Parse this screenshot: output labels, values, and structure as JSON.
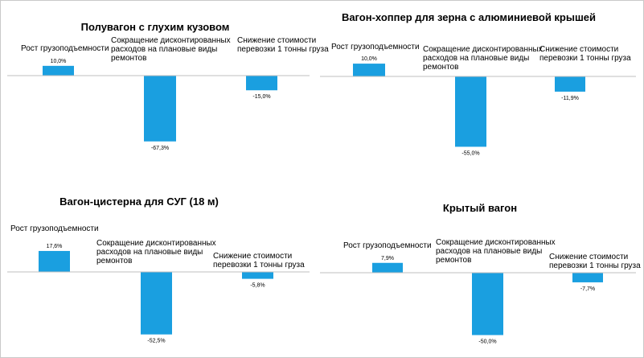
{
  "colors": {
    "bar": "#1a9fe0",
    "axis": "#bfbfbf"
  },
  "chart_data": [
    {
      "type": "bar",
      "title": "Полувагон с глухим кузовом",
      "categories": [
        [
          "Рост грузоподъемности"
        ],
        [
          "Сокращение дисконтированных",
          "расходов на плановые виды",
          "ремонтов"
        ],
        [
          "Снижение стоимости",
          "перевозки 1 тонны груза"
        ]
      ],
      "values": [
        10.0,
        -67.3,
        -15.0
      ],
      "value_labels": [
        "10,0%",
        "-67,3%",
        "-15,0%"
      ]
    },
    {
      "type": "bar",
      "title": "Вагон-хоппер  для зерна с алюминиевой крышей",
      "categories": [
        [
          "Рост грузоподъемности"
        ],
        [
          "Сокращение дисконтированных",
          "расходов на плановые виды",
          "ремонтов"
        ],
        [
          "Снижение стоимости",
          "перевозки 1 тонны груза"
        ]
      ],
      "values": [
        10.0,
        -55.0,
        -11.9
      ],
      "value_labels": [
        "10,0%",
        "-55,0%",
        "-11,9%"
      ]
    },
    {
      "type": "bar",
      "title": "Вагон-цистерна для СУГ (18 м)",
      "categories": [
        [
          "Рост грузоподъемности"
        ],
        [
          "Сокращение дисконтированных",
          "расходов на плановые виды",
          "ремонтов"
        ],
        [
          "Снижение стоимости",
          "перевозки 1 тонны груза"
        ]
      ],
      "values": [
        17.6,
        -52.5,
        -5.8
      ],
      "value_labels": [
        "17,6%",
        "-52,5%",
        "-5,8%"
      ]
    },
    {
      "type": "bar",
      "title": "Крытый вагон",
      "categories": [
        [
          "Рост грузоподъемности"
        ],
        [
          "Сокращение дисконтированных",
          "расходов на плановые виды",
          "ремонтов"
        ],
        [
          "Снижение стоимости",
          "перевозки 1 тонны груза"
        ]
      ],
      "values": [
        7.9,
        -50.0,
        -7.7
      ],
      "value_labels": [
        "7,9%",
        "-50,0%",
        "-7,7%"
      ]
    }
  ]
}
